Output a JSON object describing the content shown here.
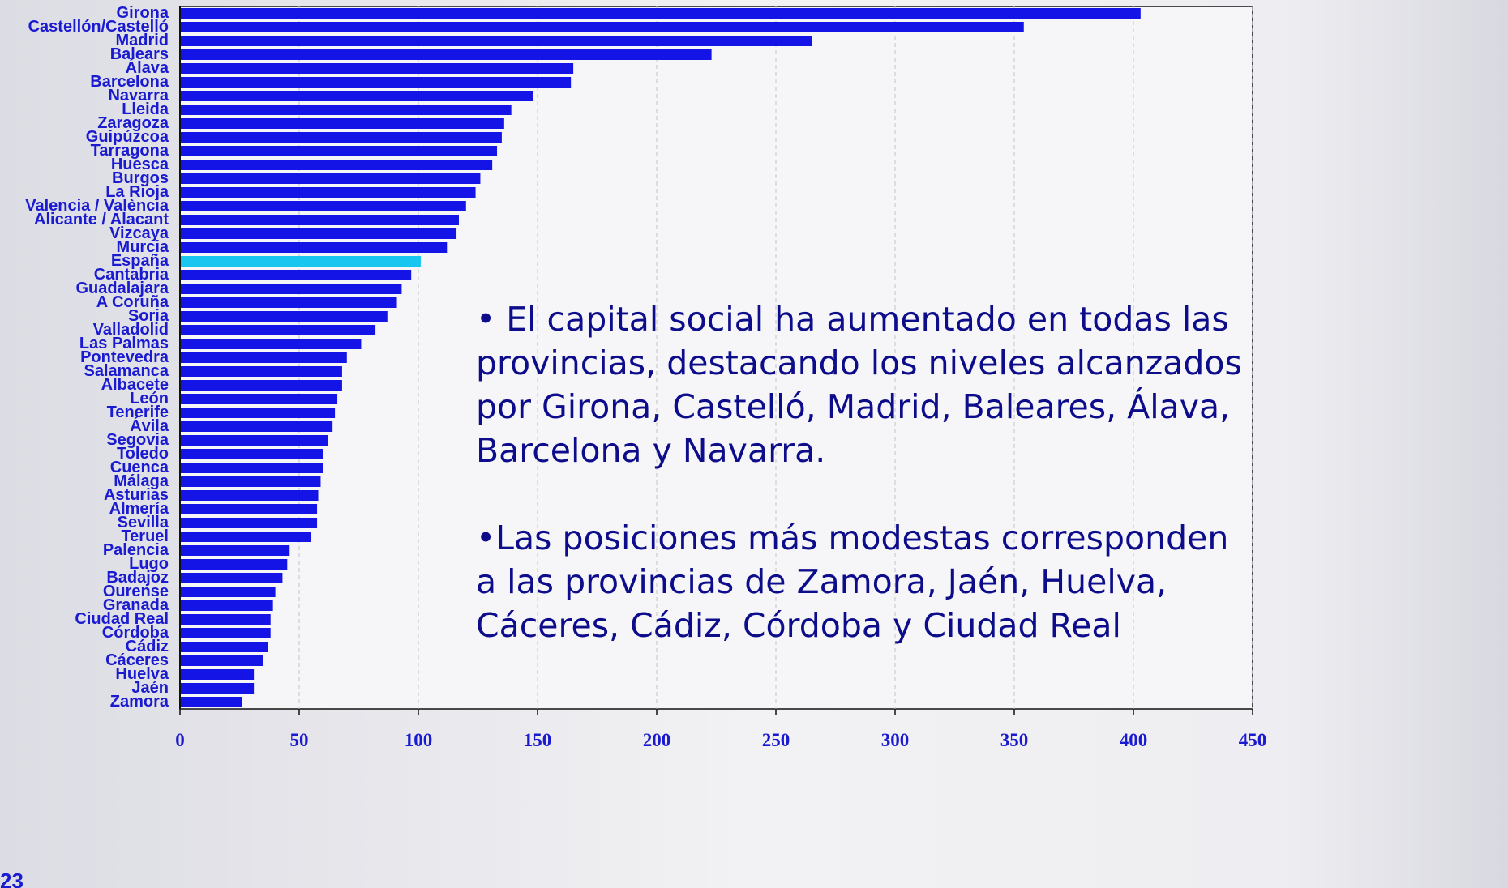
{
  "chart_data": {
    "type": "bar",
    "orientation": "horizontal",
    "categories": [
      "Girona",
      "Castellón/Castelló",
      "Madrid",
      "Balears",
      "Álava",
      "Barcelona",
      "Navarra",
      "Lleida",
      "Zaragoza",
      "Guipúzcoa",
      "Tarragona",
      "Huesca",
      "Burgos",
      "La Rioja",
      "Valencia / València",
      "Alicante / Alacant",
      "Vizcaya",
      "Murcia",
      "España",
      "Cantabria",
      "Guadalajara",
      "A Coruña",
      "Soria",
      "Valladolid",
      "Las Palmas",
      "Pontevedra",
      "Salamanca",
      "Albacete",
      "León",
      "Tenerife",
      "Ávila",
      "Segovia",
      "Toledo",
      "Cuenca",
      "Málaga",
      "Asturias",
      "Almería",
      "Sevilla",
      "Teruel",
      "Palencia",
      "Lugo",
      "Badajoz",
      "Ourense",
      "Granada",
      "Ciudad Real",
      "Córdoba",
      "Cádiz",
      "Cáceres",
      "Huelva",
      "Jaén",
      "Zamora"
    ],
    "values": [
      403,
      354,
      265,
      223,
      165,
      164,
      148,
      139,
      136,
      135,
      133,
      131,
      126,
      124,
      120,
      117,
      116,
      112,
      101,
      97,
      93,
      91,
      87,
      82,
      76,
      70,
      68,
      68,
      66,
      65,
      64,
      62,
      60,
      60,
      59,
      58,
      57.5,
      57.5,
      55,
      46,
      45,
      43,
      40,
      39,
      38,
      38,
      37,
      35,
      31,
      31,
      26
    ],
    "color": "#1414e6",
    "highlight": {
      "category": "España",
      "color": "#19c6f0"
    },
    "xlim": [
      0,
      450
    ],
    "xticks": [
      0,
      50,
      100,
      150,
      200,
      250,
      300,
      350,
      400,
      450
    ],
    "grid": true
  },
  "annotation": {
    "paragraphs": [
      [
        "• El capital social ha aumentado en todas las",
        "provincias, destacando los niveles alcanzados",
        "por Girona, Castelló, Madrid, Baleares, Álava,",
        "Barcelona y Navarra."
      ],
      [
        "•Las posiciones más modestas corresponden",
        "a las provincias de Zamora, Jaén, Huelva,",
        "Cáceres, Cádiz, Córdoba y Ciudad Real"
      ]
    ]
  },
  "slide_number": "23"
}
